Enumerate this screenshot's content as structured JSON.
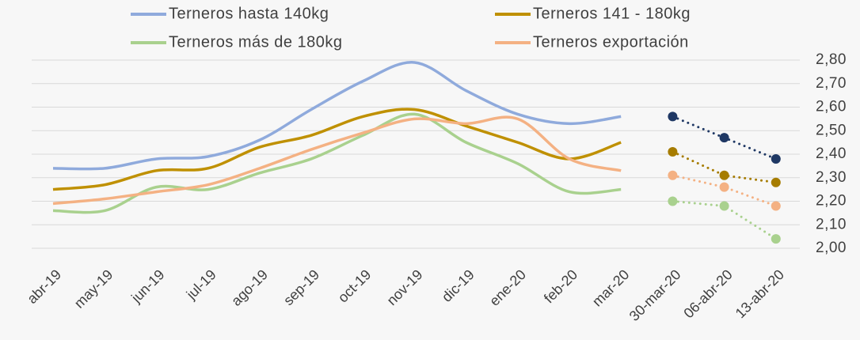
{
  "chart_data": {
    "type": "line",
    "categories": [
      "abr-19",
      "may-19",
      "jun-19",
      "jul-19",
      "ago-19",
      "sep-19",
      "oct-19",
      "nov-19",
      "dic-19",
      "ene-20",
      "feb-20",
      "mar-20",
      "30-mar-20",
      "06-abr-20",
      "13-abr-20"
    ],
    "segments": [
      {
        "start": 0,
        "end": 11,
        "style": "solid"
      },
      {
        "start": 12,
        "end": 14,
        "style": "dotted"
      }
    ],
    "series": [
      {
        "name": "Terneros hasta 140kg",
        "color": "#8faadc",
        "marker_color": "#1f3864",
        "values": [
          2.34,
          2.34,
          2.38,
          2.39,
          2.46,
          2.59,
          2.71,
          2.79,
          2.67,
          2.57,
          2.53,
          2.56,
          2.56,
          2.47,
          2.38
        ]
      },
      {
        "name": "Terneros 141 - 180kg",
        "color": "#bf9000",
        "marker_color": "#a67c00",
        "values": [
          2.25,
          2.27,
          2.33,
          2.34,
          2.43,
          2.48,
          2.56,
          2.59,
          2.52,
          2.45,
          2.38,
          2.45,
          2.41,
          2.31,
          2.28
        ]
      },
      {
        "name": "Terneros más de 180kg",
        "color": "#a9d18e",
        "marker_color": "#a9d18e",
        "values": [
          2.16,
          2.16,
          2.26,
          2.25,
          2.32,
          2.38,
          2.48,
          2.57,
          2.45,
          2.36,
          2.24,
          2.25,
          2.2,
          2.18,
          2.04
        ]
      },
      {
        "name": "Terneros exportación",
        "color": "#f4b183",
        "marker_color": "#f4b183",
        "values": [
          2.19,
          2.21,
          2.24,
          2.27,
          2.34,
          2.42,
          2.49,
          2.55,
          2.53,
          2.55,
          2.38,
          2.33,
          2.31,
          2.26,
          2.18
        ]
      }
    ],
    "ylim": [
      2.0,
      2.8
    ],
    "yticks": [
      {
        "value": 2.0,
        "label": "2,00"
      },
      {
        "value": 2.1,
        "label": "2,10"
      },
      {
        "value": 2.2,
        "label": "2,20"
      },
      {
        "value": 2.3,
        "label": "2,30"
      },
      {
        "value": 2.4,
        "label": "2,40"
      },
      {
        "value": 2.5,
        "label": "2,50"
      },
      {
        "value": 2.6,
        "label": "2,60"
      },
      {
        "value": 2.7,
        "label": "2,70"
      },
      {
        "value": 2.8,
        "label": "2,80"
      }
    ],
    "grid": true,
    "legend": "top",
    "y_axis_side": "right"
  }
}
